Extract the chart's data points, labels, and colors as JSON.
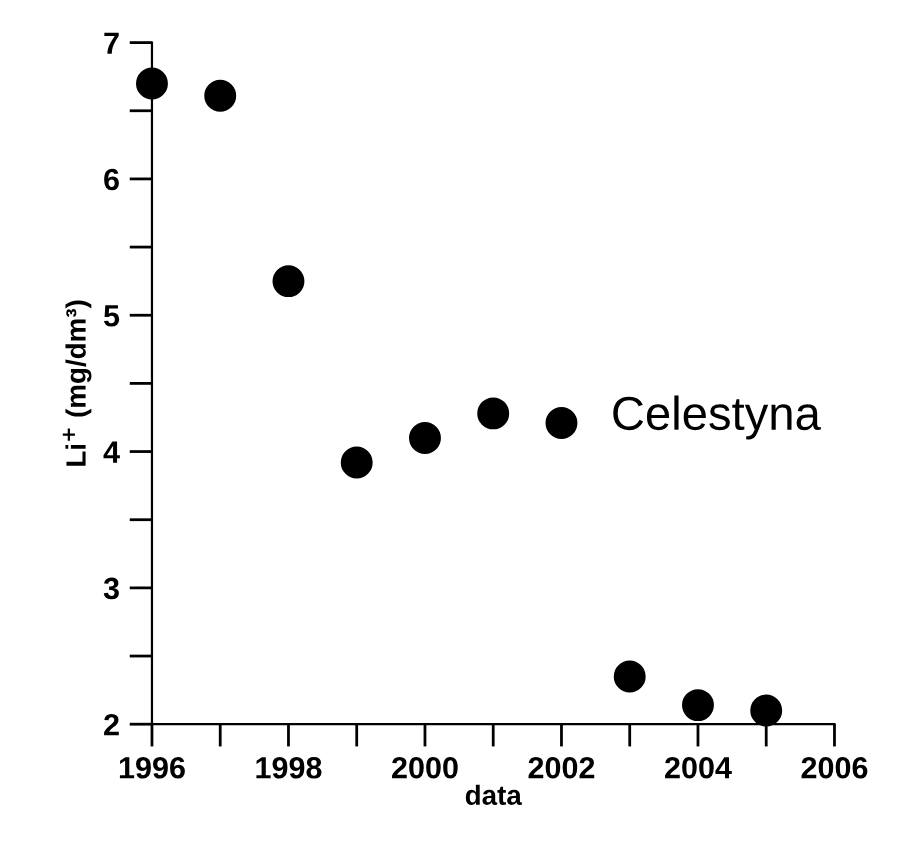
{
  "chart_data": {
    "type": "scatter",
    "xlabel": "data",
    "ylabel": "Li$^{+}$ (mg/dm³)",
    "x": [
      1996,
      1997,
      1998,
      1999,
      2000,
      2001,
      2002,
      2003,
      2004,
      2005
    ],
    "values": [
      6.7,
      6.61,
      5.25,
      3.92,
      4.1,
      4.28,
      4.21,
      2.35,
      2.14,
      2.1
    ],
    "color": "#000000",
    "marker": "circle",
    "xlim": [
      1996,
      2006
    ],
    "ylim": [
      2,
      7
    ],
    "xticks": [
      1996,
      {
        "value": 1997,
        "label": null
      },
      1998,
      {
        "value": 1999,
        "label": null
      },
      2000,
      {
        "value": 2001,
        "label": null
      },
      2002,
      {
        "value": 2003,
        "label": null
      },
      2004,
      {
        "value": 2005,
        "label": null
      },
      2006
    ],
    "yticks": [
      2,
      {
        "value": 2.5,
        "label": null
      },
      3,
      {
        "value": 3.5,
        "label": null
      },
      4,
      {
        "value": 4.5,
        "label": null
      },
      5,
      {
        "value": 5.5,
        "label": null
      },
      6,
      {
        "value": 6.5,
        "label": null
      },
      7
    ],
    "annotations": [
      "Celestyna"
    ],
    "grid": false,
    "legend": false
  }
}
